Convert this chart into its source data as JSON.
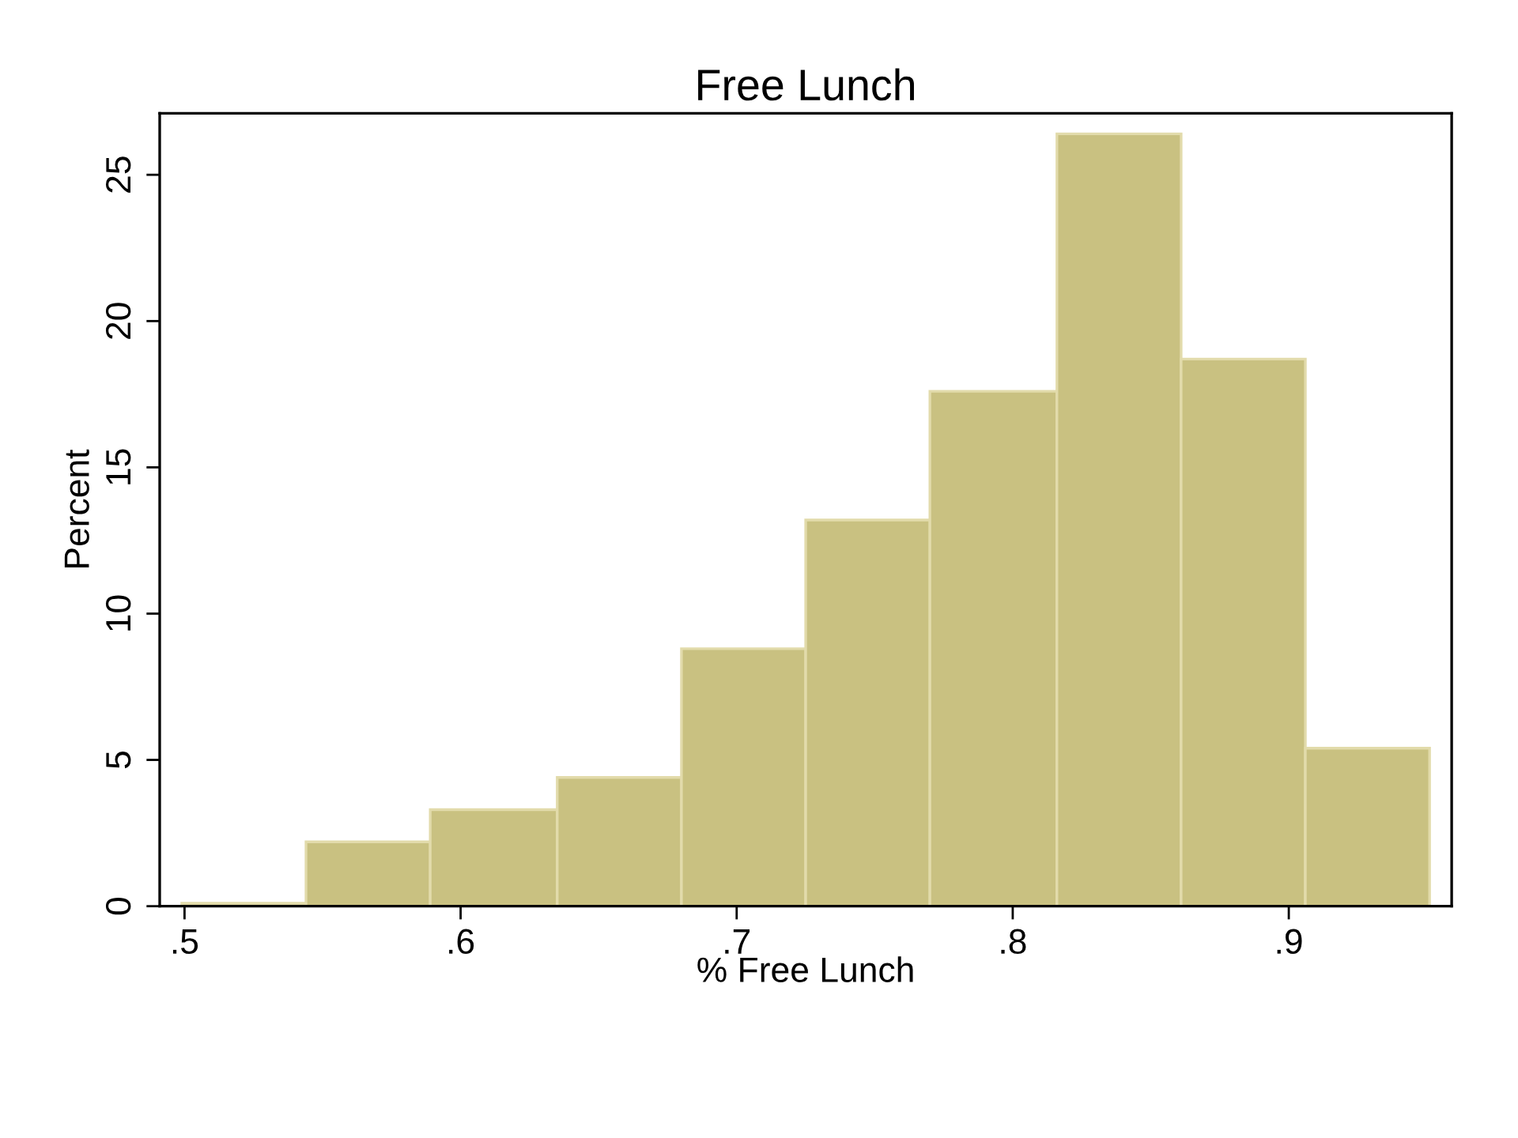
{
  "chart_data": {
    "type": "histogram",
    "title": "Free Lunch",
    "xlabel": "% Free Lunch",
    "ylabel": "Percent",
    "bins": [
      0.499,
      0.544,
      0.589,
      0.635,
      0.68,
      0.725,
      0.77,
      0.816,
      0.861,
      0.906,
      0.951
    ],
    "values": [
      0.1,
      2.2,
      3.3,
      4.4,
      8.8,
      13.2,
      17.6,
      26.4,
      18.7,
      5.4
    ],
    "color": "#c9c181",
    "xlim": [
      0.491,
      0.959
    ],
    "ylim": [
      0,
      27.1
    ],
    "xticks": [
      {
        "value": 0.5,
        "label": ".5"
      },
      {
        "value": 0.6,
        "label": ".6"
      },
      {
        "value": 0.7,
        "label": ".7"
      },
      {
        "value": 0.8,
        "label": ".8"
      },
      {
        "value": 0.9,
        "label": ".9"
      }
    ],
    "yticks": [
      0,
      5,
      10,
      15,
      20,
      25
    ],
    "grid": false,
    "legend": false
  }
}
